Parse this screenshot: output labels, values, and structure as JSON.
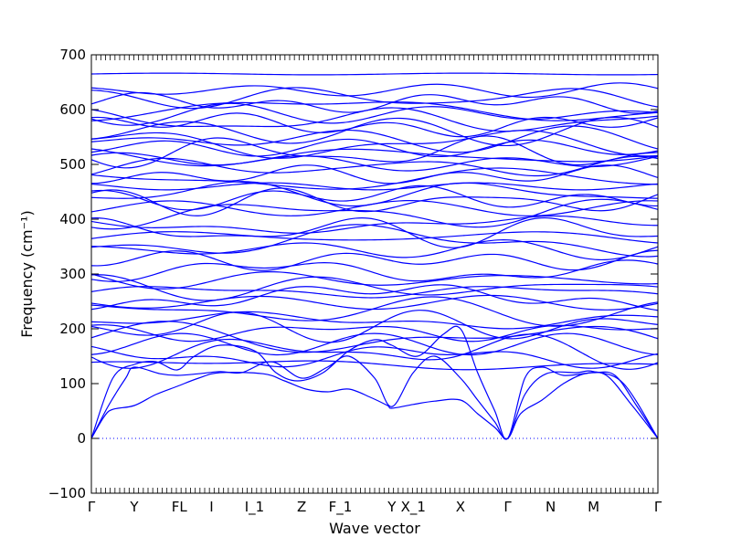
{
  "chart_data": {
    "type": "line",
    "title": "",
    "xlabel": "Wave vector",
    "ylabel": "Frequency (cm⁻¹)",
    "ylim": [
      -100,
      700
    ],
    "yticks": [
      -100,
      0,
      100,
      200,
      300,
      400,
      500,
      600,
      700
    ],
    "grid": false,
    "legend": "none",
    "line_color": "#0000ff",
    "zero_line_color": "#0000ff",
    "x_ticks": [
      {
        "label": "Γ",
        "pos": 0.0
      },
      {
        "label": "Y",
        "pos": 1.0
      },
      {
        "label": "FL",
        "pos": 2.05
      },
      {
        "label": "I",
        "pos": 2.8
      },
      {
        "label": "I_1",
        "pos": 3.8
      },
      {
        "label": "Z",
        "pos": 4.9
      },
      {
        "label": "F_1",
        "pos": 5.8
      },
      {
        "label": "Y",
        "pos": 7.0
      },
      {
        "label": "X_1",
        "pos": 7.5
      },
      {
        "label": "X",
        "pos": 8.6
      },
      {
        "label": "Γ",
        "pos": 9.7
      },
      {
        "label": "N",
        "pos": 10.7
      },
      {
        "label": "M",
        "pos": 11.7
      },
      {
        "label": "Γ",
        "pos": 13.2
      }
    ],
    "x_domain": [
      0,
      13.2
    ],
    "acoustic_branches": [
      {
        "name": "",
        "points": [
          [
            0,
            0
          ],
          [
            0.3,
            40
          ],
          [
            0.5,
            53
          ],
          [
            1.0,
            60
          ],
          [
            1.5,
            80
          ],
          [
            2.0,
            95
          ],
          [
            2.5,
            110
          ],
          [
            3.0,
            120
          ],
          [
            4.0,
            118
          ],
          [
            4.5,
            105
          ],
          [
            5.0,
            90
          ],
          [
            5.5,
            85
          ],
          [
            6.0,
            90
          ],
          [
            6.5,
            75
          ],
          [
            6.9,
            60
          ],
          [
            7.0,
            55
          ],
          [
            7.5,
            62
          ],
          [
            8.0,
            68
          ],
          [
            8.6,
            70
          ],
          [
            9.0,
            45
          ],
          [
            9.4,
            20
          ],
          [
            9.7,
            0
          ],
          [
            10.0,
            45
          ],
          [
            10.5,
            70
          ],
          [
            11.0,
            100
          ],
          [
            11.5,
            118
          ],
          [
            12.0,
            115
          ],
          [
            12.6,
            60
          ],
          [
            13.2,
            0
          ]
        ]
      },
      {
        "name": "",
        "points": [
          [
            0,
            0
          ],
          [
            0.4,
            60
          ],
          [
            0.8,
            110
          ],
          [
            1.0,
            130
          ],
          [
            1.6,
            118
          ],
          [
            2.0,
            115
          ],
          [
            2.5,
            118
          ],
          [
            3.0,
            122
          ],
          [
            3.5,
            120
          ],
          [
            4.2,
            140
          ],
          [
            4.9,
            110
          ],
          [
            5.5,
            130
          ],
          [
            6.0,
            150
          ],
          [
            6.6,
            110
          ],
          [
            7.0,
            58
          ],
          [
            7.5,
            120
          ],
          [
            8.0,
            150
          ],
          [
            8.6,
            110
          ],
          [
            9.0,
            70
          ],
          [
            9.4,
            30
          ],
          [
            9.7,
            0
          ],
          [
            10.1,
            80
          ],
          [
            10.6,
            118
          ],
          [
            11.3,
            120
          ],
          [
            11.7,
            122
          ],
          [
            12.4,
            100
          ],
          [
            13.2,
            0
          ]
        ]
      },
      {
        "name": "",
        "points": [
          [
            0,
            0
          ],
          [
            0.5,
            110
          ],
          [
            1.0,
            135
          ],
          [
            1.5,
            140
          ],
          [
            2.0,
            125
          ],
          [
            2.4,
            150
          ],
          [
            3.0,
            170
          ],
          [
            3.8,
            160
          ],
          [
            4.3,
            120
          ],
          [
            4.8,
            105
          ],
          [
            5.4,
            120
          ],
          [
            6.0,
            160
          ],
          [
            6.6,
            180
          ],
          [
            7.0,
            170
          ],
          [
            7.6,
            150
          ],
          [
            8.2,
            190
          ],
          [
            8.6,
            200
          ],
          [
            9.0,
            120
          ],
          [
            9.4,
            50
          ],
          [
            9.7,
            0
          ],
          [
            10.1,
            110
          ],
          [
            10.5,
            130
          ],
          [
            11.0,
            115
          ],
          [
            11.7,
            120
          ],
          [
            12.2,
            115
          ],
          [
            12.7,
            60
          ],
          [
            13.2,
            0
          ]
        ]
      }
    ],
    "optical_levels": [
      135,
      150,
      160,
      172,
      182,
      195,
      205,
      215,
      232,
      248,
      258,
      268,
      275,
      290,
      305,
      325,
      345,
      360,
      368,
      378,
      390,
      410,
      420,
      432,
      440,
      448,
      460,
      472,
      480,
      495,
      505,
      515,
      522,
      530,
      537,
      545,
      560,
      572,
      580,
      592,
      600,
      612,
      622,
      635,
      665
    ]
  }
}
